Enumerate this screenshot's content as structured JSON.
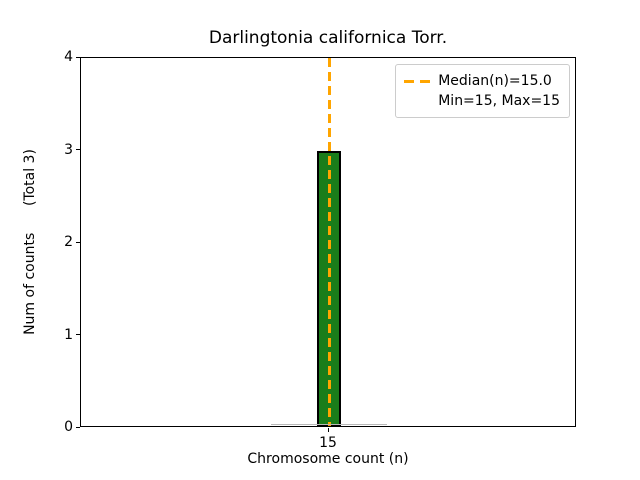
{
  "figure": {
    "background": "#ffffff"
  },
  "chart_data": {
    "type": "bar",
    "title": "Darlingtonia californica Torr.",
    "xlabel": "Chromosome count (n)",
    "ylabel": "Num of counts      (Total 3)",
    "x": [
      15
    ],
    "values": [
      3
    ],
    "total_counts": 3,
    "median_n": 15.0,
    "min_n": 15,
    "max_n": 15,
    "xlim": [
      14,
      16
    ],
    "ylim": [
      0,
      4
    ],
    "yticks": [
      "0",
      "1",
      "2",
      "3",
      "4"
    ],
    "ytick_values": [
      0,
      1,
      2,
      3,
      4
    ],
    "xticks": [
      "15"
    ],
    "xtick_values": [
      15
    ],
    "bar_width_units": 0.1,
    "bar_color": "#1a7d1a",
    "bar_edge_color": "#000000",
    "median_line_color": "#FFA500",
    "median_line_style": "dashed",
    "grid": false,
    "legend": {
      "position": "upper right",
      "entries": [
        {
          "label": "Median(n)=15.0",
          "marker": "dashed-line",
          "color": "#FFA500"
        },
        {
          "label": "Min=15, Max=15",
          "marker": "none",
          "color": ""
        }
      ]
    }
  }
}
